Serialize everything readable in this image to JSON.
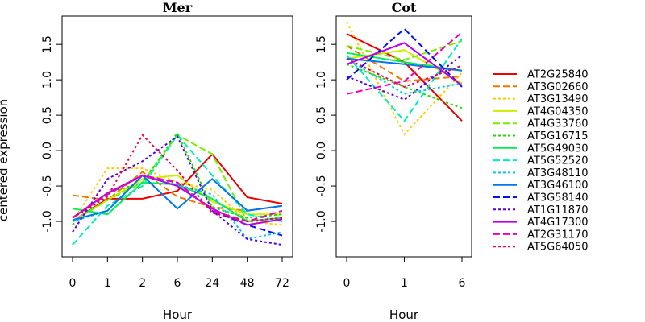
{
  "chart_data": {
    "type": "line",
    "ylabel": "centered expression",
    "ylim": [
      -1.5,
      1.9
    ],
    "yticks": [
      "-1.0",
      "-0.5",
      "0.0",
      "0.5",
      "1.0",
      "1.5"
    ],
    "yvalues": [
      -1.0,
      -0.5,
      0.0,
      0.5,
      1.0,
      1.5
    ],
    "legend_position": "right",
    "series": [
      {
        "name": "AT2G25840",
        "color": "#ee0000",
        "dash": "solid"
      },
      {
        "name": "AT3G02660",
        "color": "#ee7700",
        "dash": "dashed"
      },
      {
        "name": "AT3G13490",
        "color": "#ffcc00",
        "dash": "dotted"
      },
      {
        "name": "AT4G04350",
        "color": "#ccee00",
        "dash": "solid"
      },
      {
        "name": "AT4G33760",
        "color": "#77ee00",
        "dash": "dashed"
      },
      {
        "name": "AT5G16715",
        "color": "#22dd00",
        "dash": "dotted"
      },
      {
        "name": "AT5G49030",
        "color": "#00ee55",
        "dash": "solid"
      },
      {
        "name": "AT5G52520",
        "color": "#00eebb",
        "dash": "dashed"
      },
      {
        "name": "AT3G48110",
        "color": "#00ccee",
        "dash": "dotted"
      },
      {
        "name": "AT3G46100",
        "color": "#0077ee",
        "dash": "solid"
      },
      {
        "name": "AT3G58140",
        "color": "#0011ee",
        "dash": "dashed"
      },
      {
        "name": "AT1G11870",
        "color": "#5500ee",
        "dash": "dotted"
      },
      {
        "name": "AT4G17300",
        "color": "#bb00ee",
        "dash": "solid"
      },
      {
        "name": "AT2G31170",
        "color": "#ee00bb",
        "dash": "dashed"
      },
      {
        "name": "AT5G64050",
        "color": "#ee0055",
        "dash": "dotted"
      }
    ],
    "panels": [
      {
        "title": "Mer",
        "xlabel": "Hour",
        "categories": [
          "0",
          "1",
          "2",
          "6",
          "24",
          "48",
          "72"
        ],
        "values": [
          [
            -1.0,
            -0.68,
            -0.68,
            -0.57,
            -0.05,
            -0.66,
            -0.75
          ],
          [
            -0.63,
            -0.7,
            -0.3,
            -0.65,
            -0.8,
            -0.85,
            -0.78
          ],
          [
            -1.0,
            -0.25,
            -0.25,
            -0.45,
            -0.55,
            -1.0,
            -1.05
          ],
          [
            -1.0,
            -0.7,
            -0.4,
            -0.35,
            -0.72,
            -0.9,
            -0.9
          ],
          [
            -1.0,
            -0.7,
            -0.45,
            0.22,
            -0.05,
            -1.0,
            -0.95
          ],
          [
            -1.05,
            -0.6,
            -0.45,
            0.25,
            -0.8,
            -0.95,
            -0.9
          ],
          [
            -0.82,
            -0.9,
            -0.45,
            -0.48,
            -0.68,
            -1.0,
            -0.95
          ],
          [
            -1.33,
            -0.78,
            -0.5,
            0.22,
            -0.35,
            -0.9,
            -1.0
          ],
          [
            -1.0,
            -0.85,
            -0.35,
            -0.48,
            -0.62,
            -1.25,
            -1.15
          ],
          [
            -0.98,
            -0.85,
            -0.35,
            -0.82,
            -0.4,
            -0.85,
            -0.78
          ],
          [
            -0.95,
            -0.6,
            -0.35,
            -0.45,
            -0.85,
            -1.05,
            -1.2
          ],
          [
            -1.15,
            -0.4,
            -0.15,
            0.2,
            -0.85,
            -1.25,
            -1.33
          ],
          [
            -0.95,
            -0.6,
            -0.35,
            -0.5,
            -0.82,
            -1.05,
            -0.97
          ],
          [
            -0.95,
            -0.62,
            -0.35,
            -0.45,
            -0.85,
            -1.0,
            -0.85
          ],
          [
            -0.95,
            -0.65,
            0.22,
            -0.28,
            -0.88,
            -1.0,
            -0.95
          ]
        ]
      },
      {
        "title": "Cot",
        "xlabel": "Hour",
        "categories": [
          "0",
          "1",
          "6"
        ],
        "values": [
          [
            1.65,
            1.25,
            0.42
          ],
          [
            1.48,
            0.98,
            1.05
          ],
          [
            1.82,
            0.23,
            1.1
          ],
          [
            1.3,
            1.42,
            0.95
          ],
          [
            1.48,
            1.28,
            1.55
          ],
          [
            1.22,
            0.9,
            0.6
          ],
          [
            1.38,
            1.25,
            1.13
          ],
          [
            1.35,
            0.42,
            1.58
          ],
          [
            1.3,
            0.8,
            0.95
          ],
          [
            1.3,
            1.22,
            1.13
          ],
          [
            1.0,
            1.72,
            0.9
          ],
          [
            1.05,
            0.72,
            1.35
          ],
          [
            1.22,
            1.52,
            0.92
          ],
          [
            0.8,
            0.98,
            1.67
          ],
          [
            1.3,
            0.9,
            1.2
          ]
        ]
      }
    ]
  }
}
